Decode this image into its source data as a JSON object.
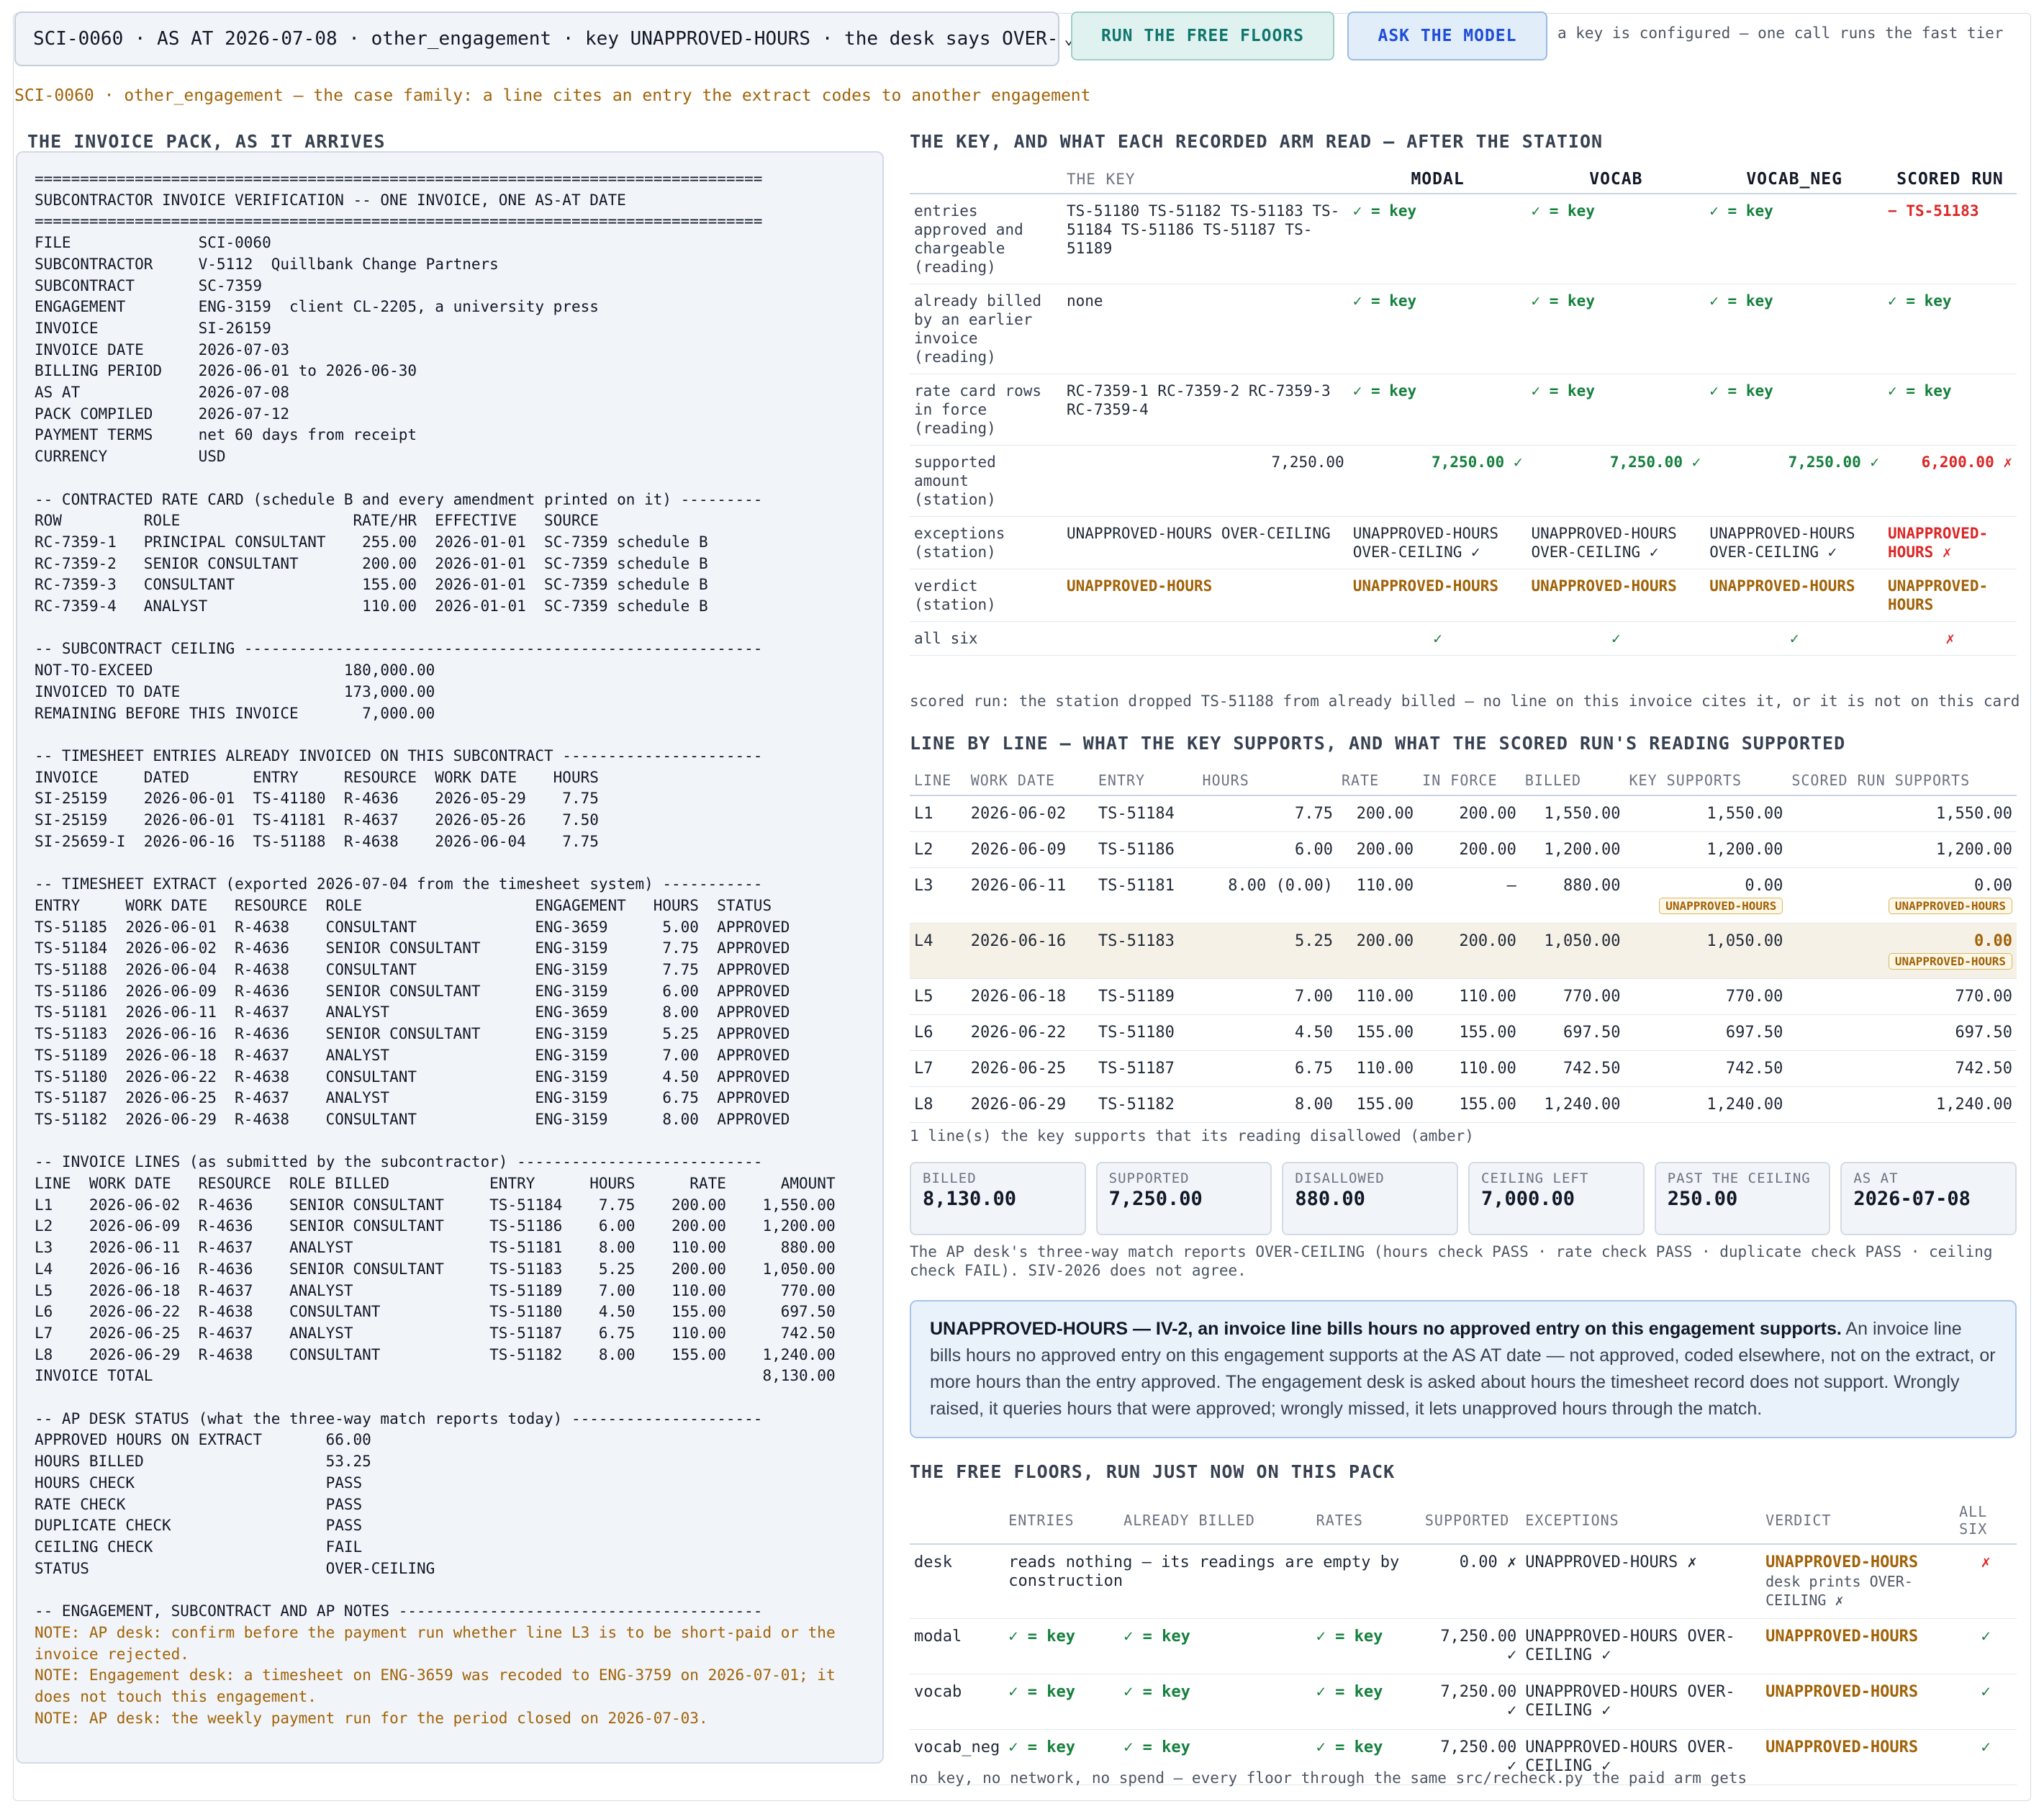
{
  "top": {
    "case_select": "SCI-0060 · AS AT 2026-07-08 · other_engagement · key UNAPPROVED-HOURS · the desk says OVER-",
    "run_floors": "RUN THE FREE FLOORS",
    "ask_model": "ASK THE MODEL",
    "key_note": "a key is configured — one call runs the fast tier",
    "family": "SCI-0060 · other_engagement — the case family: a line cites an entry the extract codes to another engagement"
  },
  "headings": {
    "pack": "THE INVOICE PACK, AS IT ARRIVES",
    "key": "THE KEY, AND WHAT EACH RECORDED ARM READ — AFTER THE STATION",
    "lines": "LINE BY LINE — WHAT THE KEY SUPPORTS, AND WHAT THE SCORED RUN'S READING SUPPORTED",
    "floors": "THE FREE FLOORS, RUN JUST NOW ON THIS PACK"
  },
  "pack": {
    "body": "================================================================================\nSUBCONTRACTOR INVOICE VERIFICATION -- ONE INVOICE, ONE AS-AT DATE\n================================================================================\nFILE              SCI-0060\nSUBCONTRACTOR     V-5112  Quillbank Change Partners\nSUBCONTRACT       SC-7359\nENGAGEMENT        ENG-3159  client CL-2205, a university press\nINVOICE           SI-26159\nINVOICE DATE      2026-07-03\nBILLING PERIOD    2026-06-01 to 2026-06-30\nAS AT             2026-07-08\nPACK COMPILED     2026-07-12\nPAYMENT TERMS     net 60 days from receipt\nCURRENCY          USD\n\n-- CONTRACTED RATE CARD (schedule B and every amendment printed on it) ---------\nROW         ROLE                   RATE/HR  EFFECTIVE   SOURCE\nRC-7359-1   PRINCIPAL CONSULTANT    255.00  2026-01-01  SC-7359 schedule B\nRC-7359-2   SENIOR CONSULTANT       200.00  2026-01-01  SC-7359 schedule B\nRC-7359-3   CONSULTANT              155.00  2026-01-01  SC-7359 schedule B\nRC-7359-4   ANALYST                 110.00  2026-01-01  SC-7359 schedule B\n\n-- SUBCONTRACT CEILING ---------------------------------------------------------\nNOT-TO-EXCEED                     180,000.00\nINVOICED TO DATE                  173,000.00\nREMAINING BEFORE THIS INVOICE       7,000.00\n\n-- TIMESHEET ENTRIES ALREADY INVOICED ON THIS SUBCONTRACT ----------------------\nINVOICE     DATED       ENTRY     RESOURCE  WORK DATE    HOURS\nSI-25159    2026-06-01  TS-41180  R-4636    2026-05-29    7.75\nSI-25159    2026-06-01  TS-41181  R-4637    2026-05-26    7.50\nSI-25659-I  2026-06-16  TS-51188  R-4638    2026-06-04    7.75\n\n-- TIMESHEET EXTRACT (exported 2026-07-04 from the timesheet system) -----------\nENTRY     WORK DATE   RESOURCE  ROLE                   ENGAGEMENT   HOURS  STATUS\nTS-51185  2026-06-01  R-4638    CONSULTANT             ENG-3659      5.00  APPROVED\nTS-51184  2026-06-02  R-4636    SENIOR CONSULTANT      ENG-3159      7.75  APPROVED\nTS-51188  2026-06-04  R-4638    CONSULTANT             ENG-3159      7.75  APPROVED\nTS-51186  2026-06-09  R-4636    SENIOR CONSULTANT      ENG-3159      6.00  APPROVED\nTS-51181  2026-06-11  R-4637    ANALYST                ENG-3659      8.00  APPROVED\nTS-51183  2026-06-16  R-4636    SENIOR CONSULTANT      ENG-3159      5.25  APPROVED\nTS-51189  2026-06-18  R-4637    ANALYST                ENG-3159      7.00  APPROVED\nTS-51180  2026-06-22  R-4638    CONSULTANT             ENG-3159      4.50  APPROVED\nTS-51187  2026-06-25  R-4637    ANALYST                ENG-3159      6.75  APPROVED\nTS-51182  2026-06-29  R-4638    CONSULTANT             ENG-3159      8.00  APPROVED\n\n-- INVOICE LINES (as submitted by the subcontractor) ---------------------------\nLINE  WORK DATE   RESOURCE  ROLE BILLED           ENTRY      HOURS      RATE      AMOUNT\nL1    2026-06-02  R-4636    SENIOR CONSULTANT     TS-51184    7.75    200.00    1,550.00\nL2    2026-06-09  R-4636    SENIOR CONSULTANT     TS-51186    6.00    200.00    1,200.00\nL3    2026-06-11  R-4637    ANALYST               TS-51181    8.00    110.00      880.00\nL4    2026-06-16  R-4636    SENIOR CONSULTANT     TS-51183    5.25    200.00    1,050.00\nL5    2026-06-18  R-4637    ANALYST               TS-51189    7.00    110.00      770.00\nL6    2026-06-22  R-4638    CONSULTANT            TS-51180    4.50    155.00      697.50\nL7    2026-06-25  R-4637    ANALYST               TS-51187    6.75    110.00      742.50\nL8    2026-06-29  R-4638    CONSULTANT            TS-51182    8.00    155.00    1,240.00\nINVOICE TOTAL                                                                   8,130.00\n\n-- AP DESK STATUS (what the three-way match reports today) ---------------------\nAPPROVED HOURS ON EXTRACT       66.00\nHOURS BILLED                    53.25\nHOURS CHECK                     PASS\nRATE CHECK                      PASS\nDUPLICATE CHECK                 PASS\nCEILING CHECK                   FAIL\nSTATUS                          OVER-CEILING\n\n-- ENGAGEMENT, SUBCONTRACT AND AP NOTES ----------------------------------------",
    "notes": "NOTE: AP desk: confirm before the payment run whether line L3 is to be short-paid or the\ninvoice rejected.\nNOTE: Engagement desk: a timesheet on ENG-3659 was recoded to ENG-3759 on 2026-07-01; it\ndoes not touch this engagement.\nNOTE: AP desk: the weekly payment run for the period closed on 2026-07-03."
  },
  "keytable": {
    "headers": [
      "THE KEY",
      "MODAL",
      "VOCAB",
      "VOCAB_NEG",
      "SCORED RUN"
    ],
    "rows": [
      {
        "label": "entries approved and chargeable (reading)",
        "key": "TS-51180 TS-51182 TS-51183 TS-51184 TS-51186 TS-51187 TS-51189",
        "modal": "✓ = key",
        "vocab": "✓ = key",
        "vocab_neg": "✓ = key",
        "scored": "− TS-51183"
      },
      {
        "label": "already billed by an earlier invoice (reading)",
        "key": "none",
        "modal": "✓ = key",
        "vocab": "✓ = key",
        "vocab_neg": "✓ = key",
        "scored": "✓ = key"
      },
      {
        "label": "rate card rows in force (reading)",
        "key": "RC-7359-1 RC-7359-2 RC-7359-3 RC-7359-4",
        "modal": "✓ = key",
        "vocab": "✓ = key",
        "vocab_neg": "✓ = key",
        "scored": "✓ = key"
      },
      {
        "label": "supported amount (station)",
        "key": "7,250.00",
        "modal": "7,250.00 ✓",
        "vocab": "7,250.00 ✓",
        "vocab_neg": "7,250.00 ✓",
        "scored": "6,200.00 ✗"
      },
      {
        "label": "exceptions (station)",
        "key": "UNAPPROVED-HOURS OVER-CEILING",
        "modal": "UNAPPROVED-HOURS OVER-CEILING ✓",
        "vocab": "UNAPPROVED-HOURS OVER-CEILING ✓",
        "vocab_neg": "UNAPPROVED-HOURS OVER-CEILING ✓",
        "scored": "UNAPPROVED-HOURS ✗"
      },
      {
        "label": "verdict (station)",
        "key": "UNAPPROVED-HOURS",
        "modal": "UNAPPROVED-HOURS",
        "vocab": "UNAPPROVED-HOURS",
        "vocab_neg": "UNAPPROVED-HOURS",
        "scored": "UNAPPROVED-HOURS"
      },
      {
        "label": "all six",
        "key": "",
        "modal": "✓",
        "vocab": "✓",
        "vocab_neg": "✓",
        "scored": "✗"
      }
    ],
    "note": "scored run: the station dropped TS-51188 from already billed — no line on this invoice cites it, or it is not on this card"
  },
  "lines": {
    "headers": [
      "LINE",
      "WORK DATE",
      "ENTRY",
      "HOURS",
      "RATE",
      "IN FORCE",
      "BILLED",
      "KEY SUPPORTS",
      "SCORED RUN SUPPORTS"
    ],
    "rows": [
      {
        "line": "L1",
        "date": "2026-06-02",
        "entry": "TS-51184",
        "hours": "7.75",
        "rate": "200.00",
        "inforce": "200.00",
        "billed": "1,550.00",
        "key": "1,550.00",
        "scored": "1,550.00",
        "key_tag": "",
        "scored_tag": ""
      },
      {
        "line": "L2",
        "date": "2026-06-09",
        "entry": "TS-51186",
        "hours": "6.00",
        "rate": "200.00",
        "inforce": "200.00",
        "billed": "1,200.00",
        "key": "1,200.00",
        "scored": "1,200.00",
        "key_tag": "",
        "scored_tag": ""
      },
      {
        "line": "L3",
        "date": "2026-06-11",
        "entry": "TS-51181",
        "hours": "8.00 (0.00)",
        "rate": "110.00",
        "inforce": "—",
        "billed": "880.00",
        "key": "0.00",
        "scored": "0.00",
        "key_tag": "UNAPPROVED-HOURS",
        "scored_tag": "UNAPPROVED-HOURS"
      },
      {
        "line": "L4",
        "date": "2026-06-16",
        "entry": "TS-51183",
        "hours": "5.25",
        "rate": "200.00",
        "inforce": "200.00",
        "billed": "1,050.00",
        "key": "1,050.00",
        "scored": "0.00",
        "key_tag": "",
        "scored_tag": "UNAPPROVED-HOURS"
      },
      {
        "line": "L5",
        "date": "2026-06-18",
        "entry": "TS-51189",
        "hours": "7.00",
        "rate": "110.00",
        "inforce": "110.00",
        "billed": "770.00",
        "key": "770.00",
        "scored": "770.00",
        "key_tag": "",
        "scored_tag": ""
      },
      {
        "line": "L6",
        "date": "2026-06-22",
        "entry": "TS-51180",
        "hours": "4.50",
        "rate": "155.00",
        "inforce": "155.00",
        "billed": "697.50",
        "key": "697.50",
        "scored": "697.50",
        "key_tag": "",
        "scored_tag": ""
      },
      {
        "line": "L7",
        "date": "2026-06-25",
        "entry": "TS-51187",
        "hours": "6.75",
        "rate": "110.00",
        "inforce": "110.00",
        "billed": "742.50",
        "key": "742.50",
        "scored": "742.50",
        "key_tag": "",
        "scored_tag": ""
      },
      {
        "line": "L8",
        "date": "2026-06-29",
        "entry": "TS-51182",
        "hours": "8.00",
        "rate": "155.00",
        "inforce": "155.00",
        "billed": "1,240.00",
        "key": "1,240.00",
        "scored": "1,240.00",
        "key_tag": "",
        "scored_tag": ""
      }
    ],
    "amber_note": "1 line(s) the key supports that its reading disallowed (amber)"
  },
  "cards": [
    {
      "label": "BILLED",
      "value": "8,130.00"
    },
    {
      "label": "SUPPORTED",
      "value": "7,250.00"
    },
    {
      "label": "DISALLOWED",
      "value": "880.00"
    },
    {
      "label": "CEILING LEFT",
      "value": "7,000.00"
    },
    {
      "label": "PAST THE CEILING",
      "value": "250.00"
    },
    {
      "label": "AS AT",
      "value": "2026-07-08"
    }
  ],
  "desk_line": "The AP desk's three-way match reports OVER-CEILING (hours check PASS · rate check PASS · duplicate check PASS · ceiling check FAIL). SIV-2026 does not agree.",
  "callout": {
    "title": "UNAPPROVED-HOURS — IV-2, an invoice line bills hours no approved entry on this engagement supports.",
    "body": " An invoice line bills hours no approved entry on this engagement supports at the AS AT date — not approved, coded elsewhere, not on the extract, or more hours than the entry approved. The engagement desk is asked about hours the timesheet record does not support. Wrongly raised, it queries hours that were approved; wrongly missed, it lets unapproved hours through the match."
  },
  "floors": {
    "headers": [
      "",
      "ENTRIES",
      "ALREADY BILLED",
      "RATES",
      "SUPPORTED",
      "EXCEPTIONS",
      "VERDICT",
      "ALL SIX"
    ],
    "desk": {
      "name": "desk",
      "entries": "reads nothing — its readings are empty by construction",
      "supported": "0.00 ✗",
      "exceptions": "UNAPPROVED-HOURS ✗",
      "verdict": "UNAPPROVED-HOURS",
      "verdict_note": "desk prints OVER-CEILING ✗",
      "all": "✗"
    },
    "rows": [
      {
        "name": "modal",
        "entries": "✓ = key",
        "billed": "✓ = key",
        "rates": "✓ = key",
        "supported": "7,250.00 ✓",
        "exceptions": "UNAPPROVED-HOURS OVER-CEILING ✓",
        "verdict": "UNAPPROVED-HOURS",
        "all": "✓"
      },
      {
        "name": "vocab",
        "entries": "✓ = key",
        "billed": "✓ = key",
        "rates": "✓ = key",
        "supported": "7,250.00 ✓",
        "exceptions": "UNAPPROVED-HOURS OVER-CEILING ✓",
        "verdict": "UNAPPROVED-HOURS",
        "all": "✓"
      },
      {
        "name": "vocab_neg",
        "entries": "✓ = key",
        "billed": "✓ = key",
        "rates": "✓ = key",
        "supported": "7,250.00 ✓",
        "exceptions": "UNAPPROVED-HOURS OVER-CEILING ✓",
        "verdict": "UNAPPROVED-HOURS",
        "all": "✓"
      }
    ],
    "footer": "no key, no network, no spend — every floor through the same src/recheck.py the paid arm gets"
  }
}
